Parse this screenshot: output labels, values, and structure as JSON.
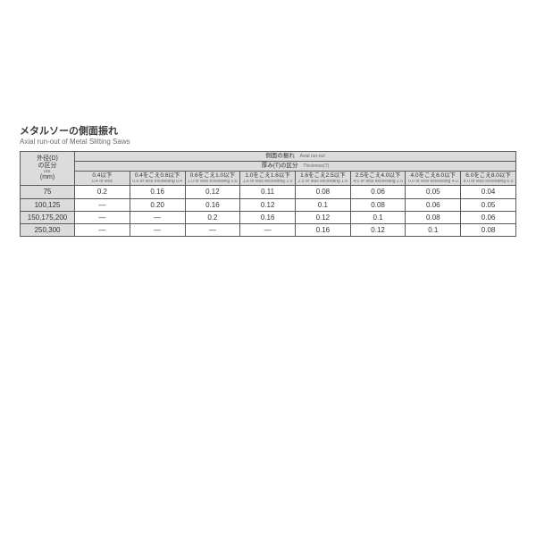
{
  "title": {
    "jp": "メタルソーの側面振れ",
    "en": "Axial run-out of Metal Slitting Saws"
  },
  "table": {
    "top_header": {
      "jp": "側面の振れ",
      "en": "Axial run-out"
    },
    "sub_header": {
      "jp": "厚み(T)の区分",
      "en": "Thickness(T)"
    },
    "row_header": {
      "jp1": "外径(D)",
      "jp2": "の区分",
      "en": "Dia.",
      "unit": "(mm)"
    },
    "thickness_cols": [
      {
        "jp": "0.4以下",
        "en": "0.4 or less"
      },
      {
        "jp": "0.4をこえ0.6以下",
        "en": "0.6 or less exceeding 0.4"
      },
      {
        "jp": "0.6をこえ1.0以下",
        "en": "1.0 or less exceeding 0.6"
      },
      {
        "jp": "1.0をこえ1.6以下",
        "en": "1.6 or less exceeding 1.0"
      },
      {
        "jp": "1.6をこえ2.5以下",
        "en": "2.5 or less exceeding 1.6"
      },
      {
        "jp": "2.5をこえ4.0以下",
        "en": "4.0 or less exceeding 2.5"
      },
      {
        "jp": "4.0をこえ6.0以下",
        "en": "6.0 or less exceeding 4.0"
      },
      {
        "jp": "6.0をこえ8.0以下",
        "en": "8.0 or less exceeding 6.0"
      }
    ],
    "rows": [
      {
        "dia": "75",
        "v": [
          "0.2",
          "0.16",
          "0.12",
          "0.11",
          "0.08",
          "0.06",
          "0.05",
          "0.04"
        ]
      },
      {
        "dia": "100,125",
        "v": [
          "—",
          "0.20",
          "0.16",
          "0.12",
          "0.1",
          "0.08",
          "0.06",
          "0.05"
        ]
      },
      {
        "dia": "150,175,200",
        "v": [
          "—",
          "—",
          "0.2",
          "0.16",
          "0.12",
          "0.1",
          "0.08",
          "0.06"
        ]
      },
      {
        "dia": "250,300",
        "v": [
          "—",
          "—",
          "—",
          "—",
          "0.16",
          "0.12",
          "0.1",
          "0.08"
        ]
      }
    ]
  },
  "colors": {
    "header_bg": "#dcdcdc",
    "border": "#5a5a5a",
    "text": "#333333",
    "subtext": "#6a6a6a",
    "bg": "#ffffff"
  }
}
